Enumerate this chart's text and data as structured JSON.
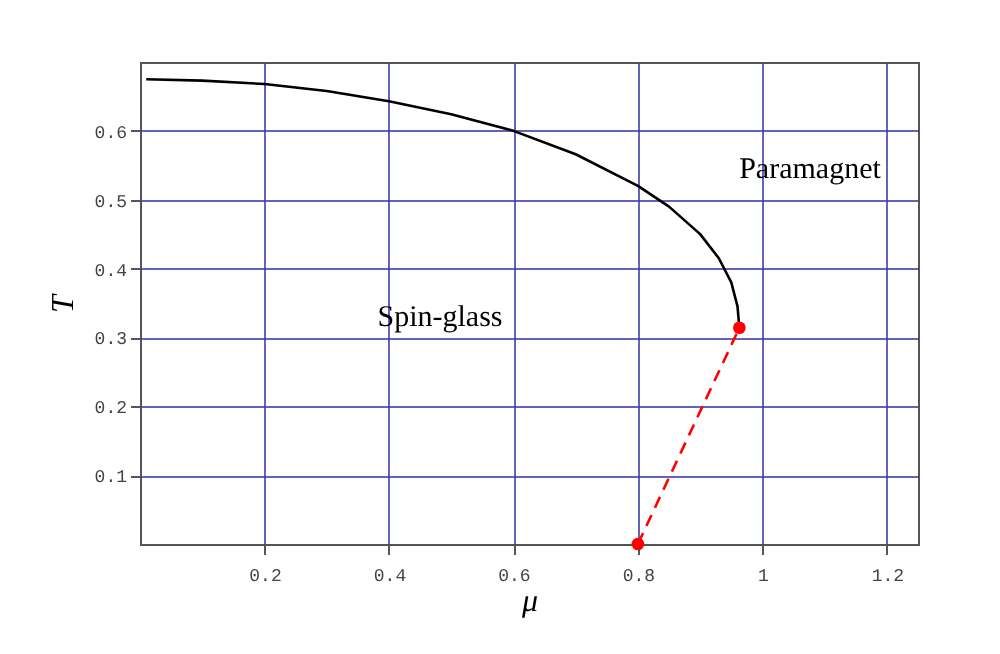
{
  "chart_data": {
    "type": "line",
    "xlabel": "μ",
    "ylabel": "T",
    "xlim": [
      0,
      1.25
    ],
    "ylim": [
      0,
      0.7
    ],
    "xticks": [
      0.2,
      0.4,
      0.6,
      0.8,
      {
        "value": 1,
        "label": "1"
      },
      1.2
    ],
    "yticks": [
      0.1,
      0.2,
      0.3,
      0.4,
      0.5,
      0.6
    ],
    "grid": true,
    "series": [
      {
        "color": "#000000",
        "line_style": "solid",
        "marker": "none",
        "x": [
          0.01,
          0.1,
          0.2,
          0.3,
          0.4,
          0.5,
          0.6,
          0.7,
          0.8,
          0.85,
          0.9,
          0.93,
          0.95,
          0.96,
          0.963
        ],
        "values": [
          0.675,
          0.673,
          0.668,
          0.658,
          0.643,
          0.624,
          0.6,
          0.566,
          0.52,
          0.49,
          0.45,
          0.415,
          0.38,
          0.345,
          0.314
        ]
      },
      {
        "color": "#ff0000",
        "line_style": "dashed",
        "marker": "circle",
        "x": [
          0.963,
          0.8
        ],
        "values": [
          0.314,
          0
        ]
      }
    ],
    "annotations": [
      "Spin-glass",
      "Paramagnet"
    ]
  }
}
